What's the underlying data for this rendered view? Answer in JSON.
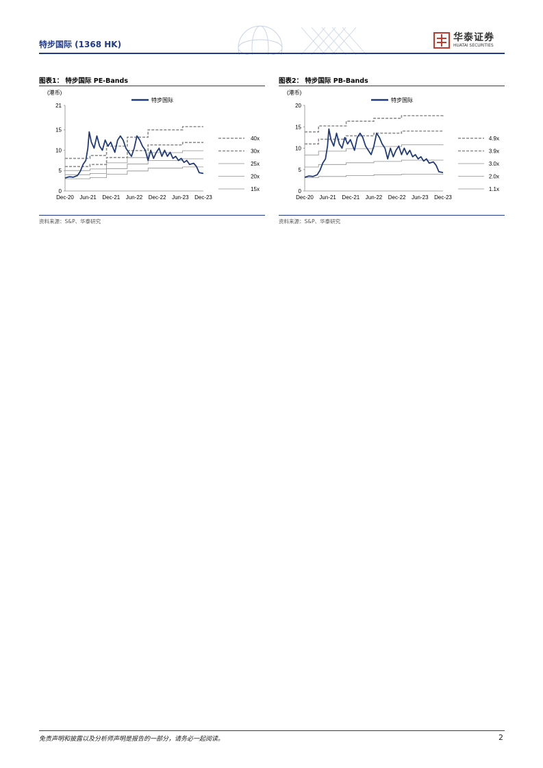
{
  "header": {
    "title": "特步国际 (1368 HK)",
    "logo_cn": "华泰证券",
    "logo_en": "HUATAI SECURITIES",
    "brand_color": "#1f3a8a",
    "logo_color": "#c0392b"
  },
  "figures": [
    {
      "title": "图表1： 特步国际 PE-Bands",
      "unit": "(港币)",
      "source": "资料来源：S&P、华泰研究",
      "chart_data": {
        "type": "line",
        "series_name": "特步国际",
        "yticks": [
          0,
          5,
          10,
          15,
          21
        ],
        "ylim": [
          0,
          21
        ],
        "xticks": [
          "Dec-20",
          "Jun-21",
          "Dec-21",
          "Jun-22",
          "Dec-22",
          "Jun-23",
          "Dec-23"
        ],
        "bands": [
          {
            "label": "40x",
            "style": "dashed",
            "steps": [
              [
                0,
                8.0
              ],
              [
                0.18,
                8.7
              ],
              [
                0.3,
                11.0
              ],
              [
                0.45,
                13.2
              ],
              [
                0.6,
                15.0
              ],
              [
                0.85,
                15.8
              ],
              [
                1,
                15.8
              ]
            ]
          },
          {
            "label": "30x",
            "style": "dashed",
            "steps": [
              [
                0,
                6.0
              ],
              [
                0.18,
                6.5
              ],
              [
                0.3,
                8.2
              ],
              [
                0.45,
                9.9
              ],
              [
                0.6,
                11.3
              ],
              [
                0.85,
                11.9
              ],
              [
                1,
                11.9
              ]
            ]
          },
          {
            "label": "25x",
            "style": "solid",
            "steps": [
              [
                0,
                5.0
              ],
              [
                0.18,
                5.4
              ],
              [
                0.3,
                6.9
              ],
              [
                0.45,
                8.2
              ],
              [
                0.6,
                9.4
              ],
              [
                0.85,
                9.9
              ],
              [
                1,
                9.9
              ]
            ]
          },
          {
            "label": "20x",
            "style": "solid",
            "steps": [
              [
                0,
                4.0
              ],
              [
                0.18,
                4.3
              ],
              [
                0.3,
                5.5
              ],
              [
                0.45,
                6.6
              ],
              [
                0.6,
                7.5
              ],
              [
                0.85,
                7.9
              ],
              [
                1,
                7.9
              ]
            ]
          },
          {
            "label": "15x",
            "style": "solid",
            "steps": [
              [
                0,
                3.0
              ],
              [
                0.18,
                3.3
              ],
              [
                0.3,
                4.1
              ],
              [
                0.45,
                4.9
              ],
              [
                0.6,
                5.6
              ],
              [
                0.85,
                5.9
              ],
              [
                1,
                5.9
              ]
            ]
          }
        ],
        "price": [
          [
            0,
            3.2
          ],
          [
            0.03,
            3.5
          ],
          [
            0.06,
            3.4
          ],
          [
            0.09,
            3.8
          ],
          [
            0.11,
            4.8
          ],
          [
            0.13,
            6.5
          ],
          [
            0.15,
            7.5
          ],
          [
            0.165,
            10.5
          ],
          [
            0.175,
            14.5
          ],
          [
            0.19,
            12.0
          ],
          [
            0.21,
            10.5
          ],
          [
            0.23,
            13.5
          ],
          [
            0.25,
            11.0
          ],
          [
            0.27,
            10.0
          ],
          [
            0.29,
            12.5
          ],
          [
            0.31,
            11.0
          ],
          [
            0.33,
            12.0
          ],
          [
            0.36,
            9.5
          ],
          [
            0.38,
            12.5
          ],
          [
            0.4,
            13.5
          ],
          [
            0.42,
            12.5
          ],
          [
            0.44,
            10.5
          ],
          [
            0.46,
            9.5
          ],
          [
            0.48,
            8.5
          ],
          [
            0.5,
            10.5
          ],
          [
            0.52,
            13.5
          ],
          [
            0.54,
            12.5
          ],
          [
            0.56,
            11.0
          ],
          [
            0.58,
            10.0
          ],
          [
            0.6,
            7.5
          ],
          [
            0.62,
            10.0
          ],
          [
            0.64,
            8.0
          ],
          [
            0.66,
            9.5
          ],
          [
            0.68,
            10.5
          ],
          [
            0.7,
            8.5
          ],
          [
            0.72,
            10.0
          ],
          [
            0.74,
            8.5
          ],
          [
            0.76,
            9.5
          ],
          [
            0.78,
            8.0
          ],
          [
            0.8,
            8.5
          ],
          [
            0.82,
            7.5
          ],
          [
            0.84,
            8.0
          ],
          [
            0.86,
            7.0
          ],
          [
            0.88,
            7.5
          ],
          [
            0.9,
            6.5
          ],
          [
            0.93,
            6.8
          ],
          [
            0.95,
            6.0
          ],
          [
            0.97,
            4.5
          ],
          [
            1,
            4.3
          ]
        ]
      }
    },
    {
      "title": "图表2： 特步国际 PB-Bands",
      "unit": "(港币)",
      "source": "资料来源：S&P、华泰研究",
      "chart_data": {
        "type": "line",
        "series_name": "特步国际",
        "yticks": [
          0,
          5,
          10,
          15,
          20
        ],
        "ylim": [
          0,
          20
        ],
        "xticks": [
          "Dec-20",
          "Jun-21",
          "Dec-21",
          "Jun-22",
          "Dec-22",
          "Jun-23",
          "Dec-23"
        ],
        "bands": [
          {
            "label": "4.9x",
            "style": "dashed",
            "steps": [
              [
                0,
                13.8
              ],
              [
                0.1,
                15.2
              ],
              [
                0.3,
                16.3
              ],
              [
                0.5,
                17.0
              ],
              [
                0.7,
                17.6
              ],
              [
                1,
                17.8
              ]
            ]
          },
          {
            "label": "3.9x",
            "style": "dashed",
            "steps": [
              [
                0,
                11.0
              ],
              [
                0.1,
                12.1
              ],
              [
                0.3,
                12.9
              ],
              [
                0.5,
                13.5
              ],
              [
                0.7,
                14.0
              ],
              [
                1,
                14.2
              ]
            ]
          },
          {
            "label": "3.0x",
            "style": "solid",
            "steps": [
              [
                0,
                8.4
              ],
              [
                0.1,
                9.3
              ],
              [
                0.3,
                9.9
              ],
              [
                0.5,
                10.4
              ],
              [
                0.7,
                10.8
              ],
              [
                1,
                10.9
              ]
            ]
          },
          {
            "label": "2.0x",
            "style": "solid",
            "steps": [
              [
                0,
                5.6
              ],
              [
                0.1,
                6.2
              ],
              [
                0.3,
                6.6
              ],
              [
                0.5,
                6.9
              ],
              [
                0.7,
                7.2
              ],
              [
                1,
                7.3
              ]
            ]
          },
          {
            "label": "1.1x",
            "style": "solid",
            "steps": [
              [
                0,
                3.1
              ],
              [
                0.1,
                3.4
              ],
              [
                0.3,
                3.6
              ],
              [
                0.5,
                3.8
              ],
              [
                0.7,
                3.9
              ],
              [
                1,
                4.0
              ]
            ]
          }
        ],
        "price": [
          [
            0,
            3.2
          ],
          [
            0.03,
            3.5
          ],
          [
            0.06,
            3.4
          ],
          [
            0.09,
            3.8
          ],
          [
            0.11,
            4.8
          ],
          [
            0.13,
            6.5
          ],
          [
            0.15,
            7.5
          ],
          [
            0.165,
            10.5
          ],
          [
            0.175,
            14.5
          ],
          [
            0.19,
            12.0
          ],
          [
            0.21,
            10.5
          ],
          [
            0.23,
            13.5
          ],
          [
            0.25,
            11.0
          ],
          [
            0.27,
            10.0
          ],
          [
            0.29,
            12.5
          ],
          [
            0.31,
            11.0
          ],
          [
            0.33,
            12.0
          ],
          [
            0.36,
            9.5
          ],
          [
            0.38,
            12.5
          ],
          [
            0.4,
            13.5
          ],
          [
            0.42,
            12.5
          ],
          [
            0.44,
            10.5
          ],
          [
            0.46,
            9.5
          ],
          [
            0.48,
            8.5
          ],
          [
            0.5,
            10.5
          ],
          [
            0.52,
            13.5
          ],
          [
            0.54,
            12.5
          ],
          [
            0.56,
            11.0
          ],
          [
            0.58,
            10.0
          ],
          [
            0.6,
            7.5
          ],
          [
            0.62,
            10.0
          ],
          [
            0.64,
            8.0
          ],
          [
            0.66,
            9.5
          ],
          [
            0.68,
            10.5
          ],
          [
            0.7,
            8.5
          ],
          [
            0.72,
            10.0
          ],
          [
            0.74,
            8.5
          ],
          [
            0.76,
            9.5
          ],
          [
            0.78,
            8.0
          ],
          [
            0.8,
            8.5
          ],
          [
            0.82,
            7.5
          ],
          [
            0.84,
            8.0
          ],
          [
            0.86,
            7.0
          ],
          [
            0.88,
            7.5
          ],
          [
            0.9,
            6.5
          ],
          [
            0.93,
            6.8
          ],
          [
            0.95,
            6.0
          ],
          [
            0.97,
            4.5
          ],
          [
            1,
            4.3
          ]
        ]
      }
    }
  ],
  "footer": {
    "note": "免责声明和披露以及分析师声明是报告的一部分，请务必一起阅读。",
    "page": "2"
  }
}
